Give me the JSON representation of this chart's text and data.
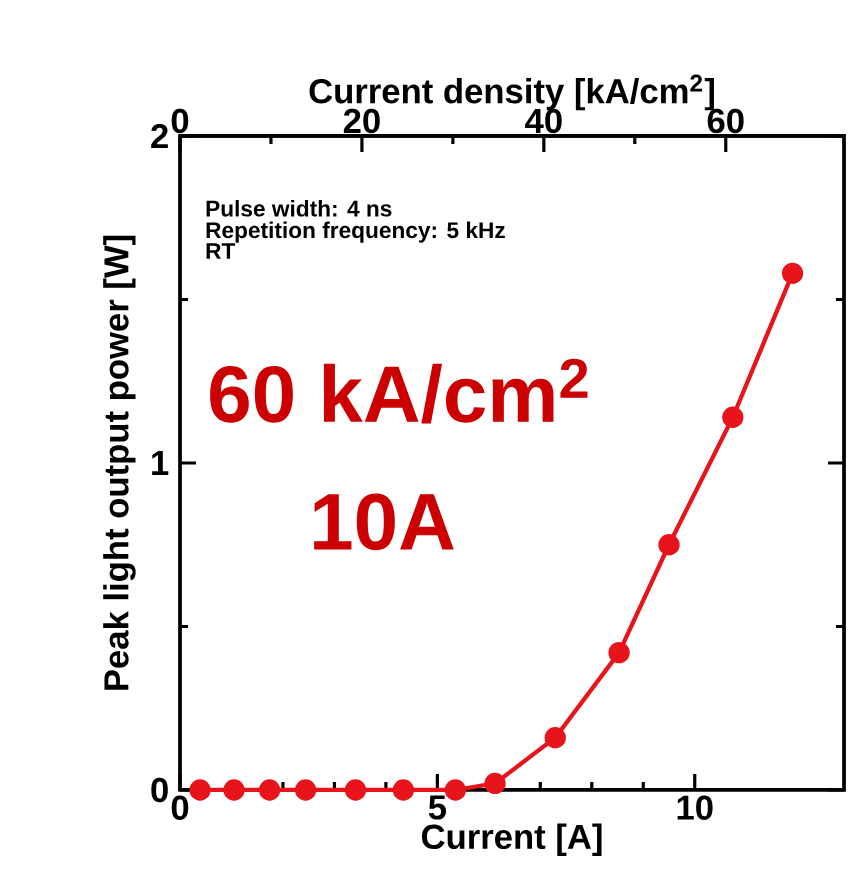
{
  "chart_data": {
    "type": "line",
    "xlabel": "Current [A]",
    "ylabel": "Peak light output power [W]",
    "x2label": "Current density [kA/cm$^{2}$]",
    "xlim": [
      0,
      12.9
    ],
    "xticks": [
      0,
      5,
      10
    ],
    "ylim": [
      0,
      2
    ],
    "yticks": [
      0,
      1,
      2
    ],
    "x2lim": [
      0,
      73
    ],
    "x2ticks": [
      0,
      20,
      40,
      60
    ],
    "marker": "circle",
    "line_style": "solid",
    "annotations": [
      "Pulse width: 4 ns",
      "Repetition frequency: 5 kHz",
      "RT",
      "60 kA/cm$^{2}$",
      "10A"
    ],
    "series": [
      {
        "color": "#e8141b",
        "x": [
          0.39,
          1.05,
          1.74,
          2.44,
          3.41,
          4.34,
          5.35,
          6.12,
          7.29,
          8.53,
          9.5,
          10.74,
          11.9
        ],
        "values": [
          0,
          0,
          0,
          0,
          0,
          0,
          0,
          0.02,
          0.16,
          0.42,
          0.75,
          1.14,
          1.58
        ]
      }
    ]
  }
}
